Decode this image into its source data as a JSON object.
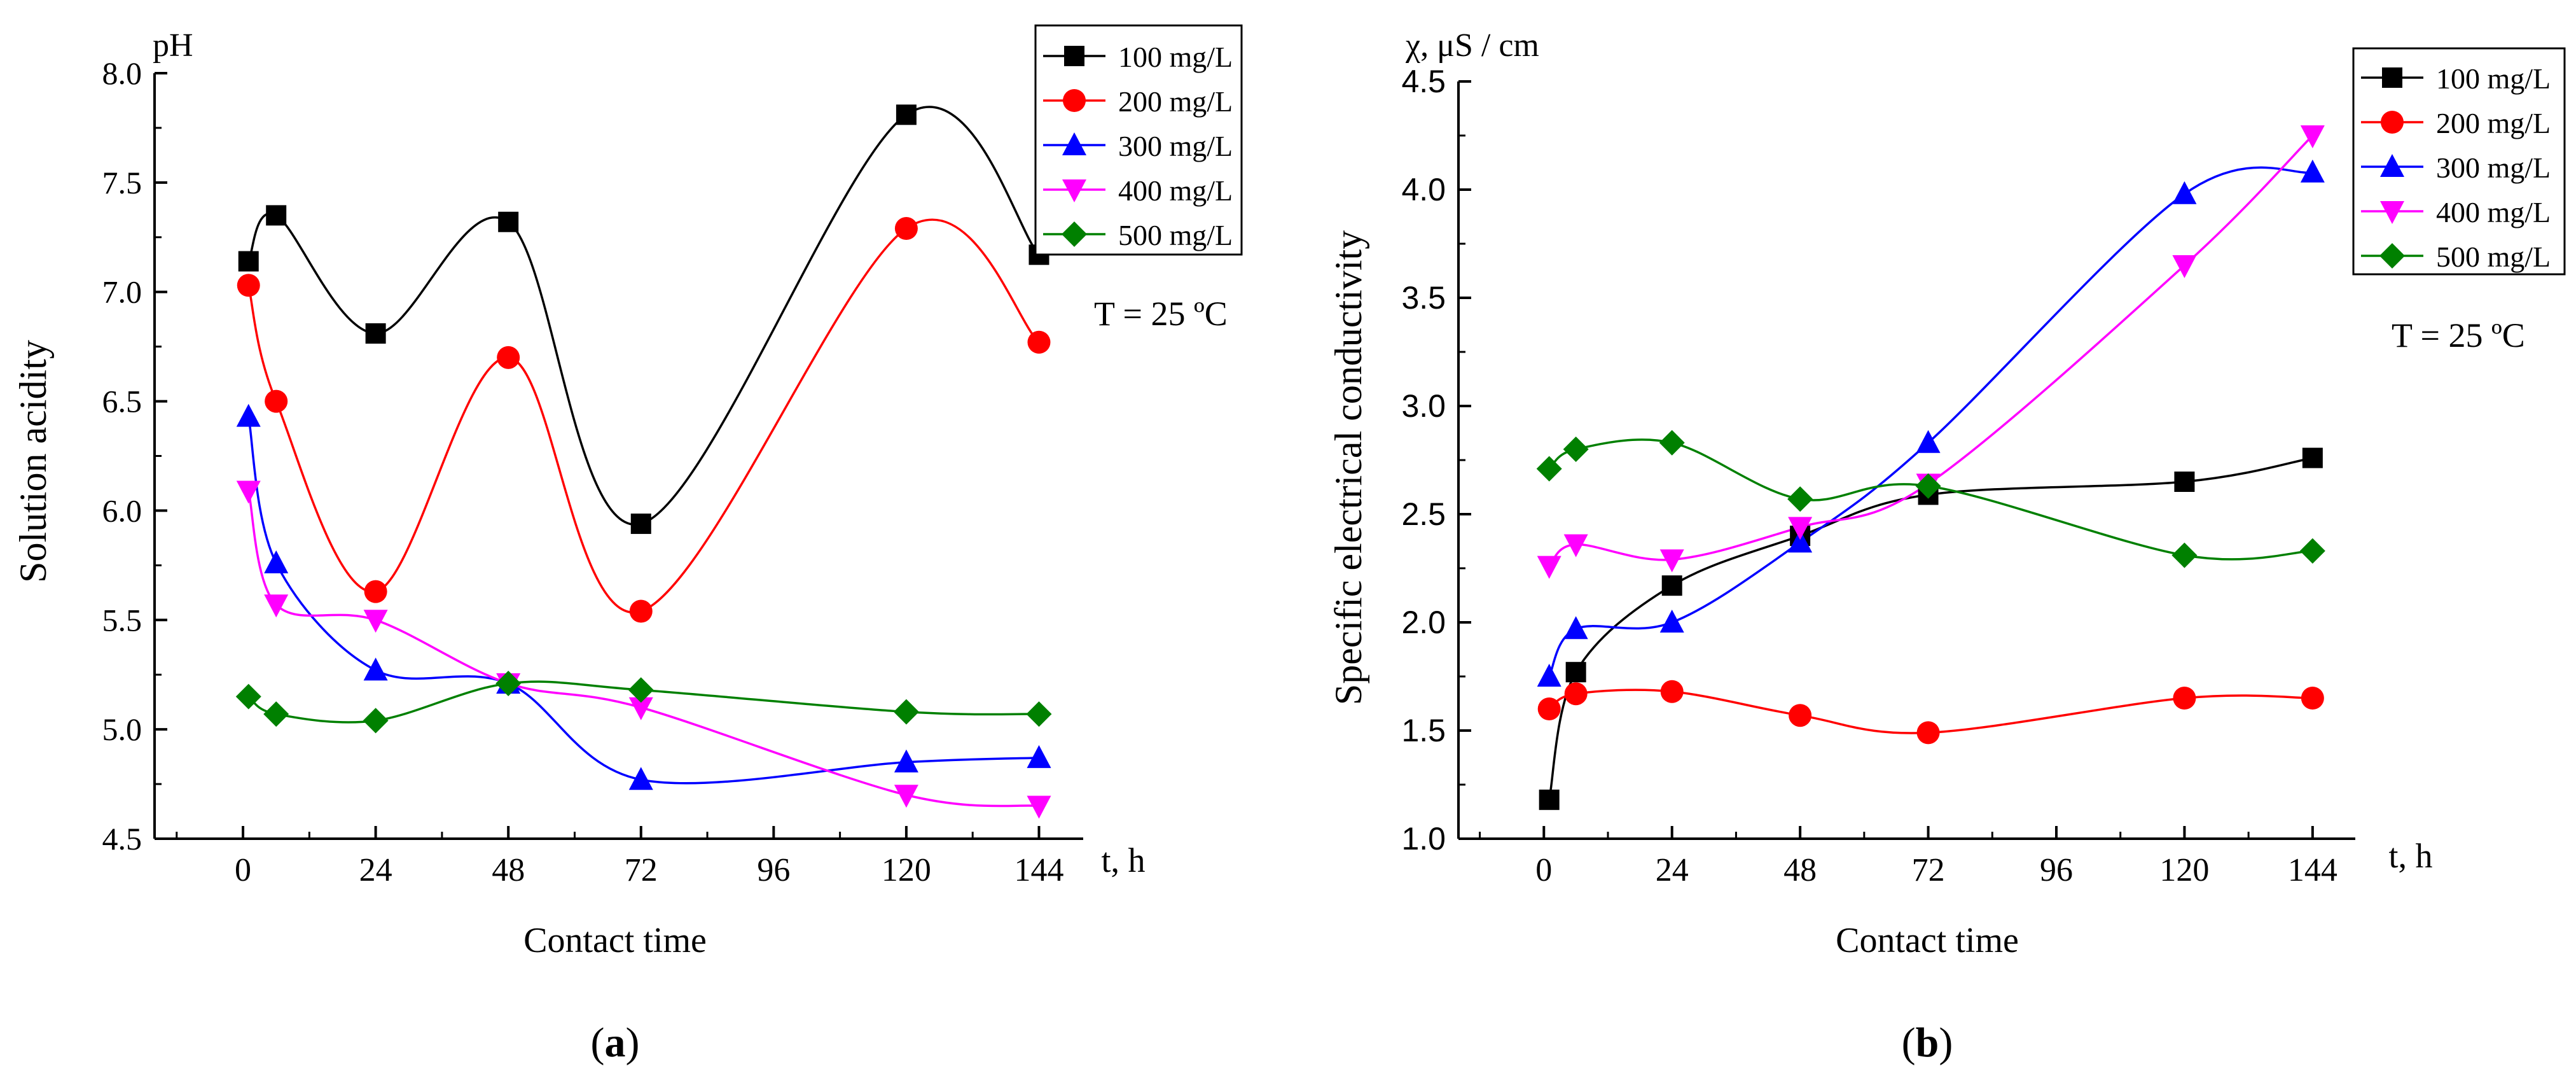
{
  "chart_data": [
    {
      "type": "line",
      "panel_label_prefix": "(",
      "panel_label": "a",
      "panel_label_suffix": ")",
      "ylabel_top": "pH",
      "ylabel": "Solution acidity",
      "xlabel": "Contact time",
      "xunit": "t, h",
      "annotation": "T = 25 ºC",
      "xlim": [
        -16,
        152
      ],
      "ylim": [
        4.5,
        8.0
      ],
      "xticks": [
        0,
        24,
        48,
        72,
        96,
        120,
        144
      ],
      "yticks": [
        4.5,
        5.0,
        5.5,
        6.0,
        6.5,
        7.0,
        7.5,
        8.0
      ],
      "x": [
        1,
        6,
        24,
        48,
        72,
        120,
        144
      ],
      "series": [
        {
          "name": "100 mg/L",
          "marker": "square",
          "color": "#000000",
          "values": [
            7.14,
            7.35,
            6.81,
            7.32,
            5.94,
            7.81,
            7.17
          ]
        },
        {
          "name": "200 mg/L",
          "marker": "circle",
          "color": "#ff0000",
          "values": [
            7.03,
            6.5,
            5.63,
            6.7,
            5.54,
            7.29,
            6.77
          ]
        },
        {
          "name": "300 mg/L",
          "marker": "triangle-up",
          "color": "#0000ff",
          "values": [
            6.43,
            5.76,
            5.27,
            5.21,
            4.77,
            4.85,
            4.87
          ]
        },
        {
          "name": "400 mg/L",
          "marker": "triangle-down",
          "color": "#ff00ff",
          "values": [
            6.09,
            5.57,
            5.5,
            5.21,
            5.1,
            4.7,
            4.65
          ]
        },
        {
          "name": "500 mg/L",
          "marker": "diamond",
          "color": "#008000",
          "values": [
            5.15,
            5.07,
            5.04,
            5.21,
            5.18,
            5.08,
            5.07
          ]
        }
      ]
    },
    {
      "type": "line",
      "panel_label_prefix": "(",
      "panel_label": "b",
      "panel_label_suffix": ")",
      "ylabel_top": "χ, μS / cm",
      "ylabel": "Specific electrical conductivity",
      "xlabel": "Contact time",
      "xunit": "t, h",
      "annotation": "T = 25 ºC",
      "xlim": [
        -16,
        152
      ],
      "ylim": [
        1.0,
        4.5
      ],
      "xticks": [
        0,
        24,
        48,
        72,
        96,
        120,
        144
      ],
      "yticks": [
        1.0,
        1.5,
        2.0,
        2.5,
        3.0,
        3.5,
        4.0,
        4.5
      ],
      "x": [
        1,
        6,
        24,
        48,
        72,
        120,
        144
      ],
      "series": [
        {
          "name": "100 mg/L",
          "marker": "square",
          "color": "#000000",
          "values": [
            1.18,
            1.77,
            2.17,
            2.4,
            2.59,
            2.65,
            2.76
          ]
        },
        {
          "name": "200 mg/L",
          "marker": "circle",
          "color": "#ff0000",
          "values": [
            1.6,
            1.67,
            1.68,
            1.57,
            1.49,
            1.65,
            1.65
          ]
        },
        {
          "name": "300 mg/L",
          "marker": "triangle-up",
          "color": "#0000ff",
          "values": [
            1.75,
            1.97,
            2.0,
            2.37,
            2.83,
            3.98,
            4.08
          ]
        },
        {
          "name": "400 mg/L",
          "marker": "triangle-down",
          "color": "#ff00ff",
          "values": [
            2.26,
            2.36,
            2.29,
            2.44,
            2.64,
            3.65,
            4.25
          ]
        },
        {
          "name": "500 mg/L",
          "marker": "diamond",
          "color": "#008000",
          "values": [
            2.71,
            2.8,
            2.83,
            2.57,
            2.63,
            2.31,
            2.33
          ]
        }
      ]
    }
  ]
}
